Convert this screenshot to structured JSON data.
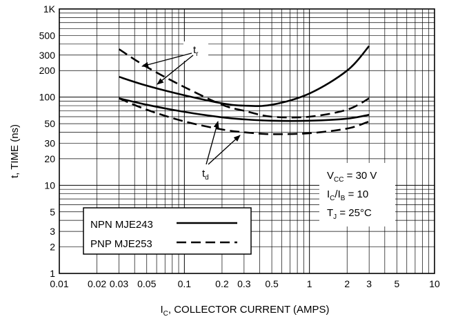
{
  "chart_data": {
    "type": "line",
    "x_scale": "log",
    "y_scale": "log",
    "xlim": [
      0.01,
      10
    ],
    "ylim": [
      1,
      1000
    ],
    "grid": true,
    "xlabel": {
      "main": "I",
      "sub": "C",
      "rest": ", COLLECTOR CURRENT (AMPS)"
    },
    "ylabel": "t, TIME (ns)",
    "x_ticks": [
      {
        "value": 0.01,
        "label": "0.01"
      },
      {
        "value": 0.02,
        "label": "0.02"
      },
      {
        "value": 0.03,
        "label": "0.03"
      },
      {
        "value": 0.05,
        "label": "0.05"
      },
      {
        "value": 0.1,
        "label": "0.1"
      },
      {
        "value": 0.2,
        "label": "0.2"
      },
      {
        "value": 0.3,
        "label": "0.3"
      },
      {
        "value": 0.5,
        "label": "0.5"
      },
      {
        "value": 1,
        "label": "1"
      },
      {
        "value": 2,
        "label": "2"
      },
      {
        "value": 3,
        "label": "3"
      },
      {
        "value": 5,
        "label": "5"
      },
      {
        "value": 10,
        "label": "10"
      }
    ],
    "y_ticks": [
      {
        "value": 1,
        "label": "1"
      },
      {
        "value": 2,
        "label": "2"
      },
      {
        "value": 3,
        "label": "3"
      },
      {
        "value": 5,
        "label": "5"
      },
      {
        "value": 10,
        "label": "10"
      },
      {
        "value": 20,
        "label": "20"
      },
      {
        "value": 30,
        "label": "30"
      },
      {
        "value": 50,
        "label": "50"
      },
      {
        "value": 100,
        "label": "100"
      },
      {
        "value": 200,
        "label": "200"
      },
      {
        "value": 300,
        "label": "300"
      },
      {
        "value": 500,
        "label": "500"
      },
      {
        "value": 1000,
        "label": "1K"
      }
    ],
    "series": [
      {
        "id": "npn-tr",
        "style": "solid",
        "x": [
          0.03,
          0.05,
          0.1,
          0.2,
          0.3,
          0.5,
          1,
          2,
          3
        ],
        "y": [
          170,
          135,
          105,
          85,
          80,
          82,
          110,
          200,
          380
        ]
      },
      {
        "id": "pnp-tr",
        "style": "dashed",
        "x": [
          0.03,
          0.05,
          0.1,
          0.2,
          0.3,
          0.5,
          1,
          2,
          3
        ],
        "y": [
          350,
          220,
          130,
          82,
          70,
          60,
          60,
          72,
          97
        ]
      },
      {
        "id": "npn-td",
        "style": "solid",
        "x": [
          0.03,
          0.05,
          0.1,
          0.2,
          0.3,
          0.5,
          1,
          2,
          3
        ],
        "y": [
          97,
          82,
          68,
          59,
          56,
          54,
          54,
          57,
          63
        ]
      },
      {
        "id": "pnp-td",
        "style": "dashed",
        "x": [
          0.03,
          0.05,
          0.1,
          0.2,
          0.3,
          0.5,
          1,
          2,
          3
        ],
        "y": [
          97,
          72,
          53,
          43,
          40,
          38,
          39,
          44,
          53
        ]
      }
    ],
    "annotations": {
      "tr": {
        "main": "t",
        "sub": "r"
      },
      "td": {
        "main": "t",
        "sub": "d"
      }
    },
    "conditions": [
      {
        "main": "V",
        "sub": "CC",
        "rest": " = 30 V"
      },
      {
        "main": "I",
        "sub": "C",
        "mid": "/I",
        "sub2": "B",
        "rest": " = 10"
      },
      {
        "main": "T",
        "sub": "J",
        "rest": " = 25°C"
      }
    ],
    "legend": {
      "position": "bottom-left",
      "entries": [
        {
          "label": "NPN MJE243",
          "style": "solid"
        },
        {
          "label": "PNP MJE253",
          "style": "dashed"
        }
      ]
    }
  }
}
